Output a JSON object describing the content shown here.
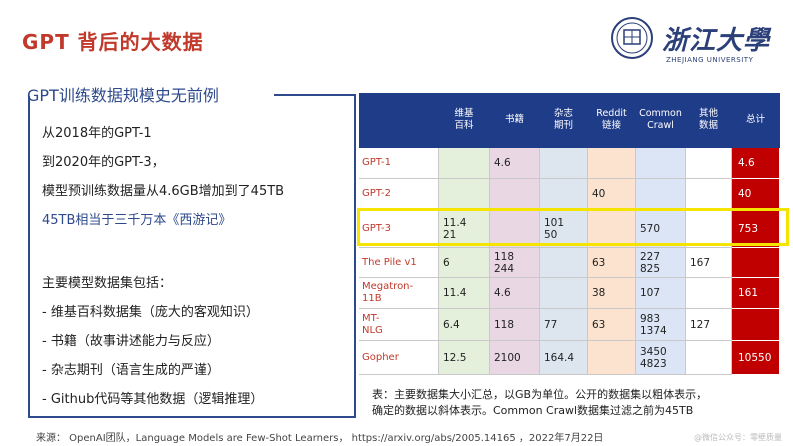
{
  "slide": {
    "title": "GPT 背后的大数据"
  },
  "logo": {
    "chinese": "浙江大學",
    "english": "ZHEJIANG UNIVERSITY"
  },
  "left": {
    "subtitle": "GPT训练数据规模史无前例",
    "lines": [
      "从2018年的GPT-1",
      "到2020年的GPT-3，",
      "模型预训练数据量从4.6GB增加到了45TB",
      "45TB相当于三千万本《西游记》",
      "",
      "主要模型数据集包括：",
      "-  维基百科数据集（庞大的客观知识）",
      "-  书籍（故事讲述能力与反应）",
      "-  杂志期刊（语言生成的严谨）",
      "-  Github代码等其他数据（逻辑推理）"
    ]
  },
  "table": {
    "headers": [
      "",
      "维基\n百科",
      "书籍",
      "杂志\n期刊",
      "Reddit\n链接",
      "Common\nCrawl",
      "其他\n数据",
      "总计"
    ],
    "rows": [
      {
        "name": "GPT-1",
        "cells": [
          "",
          "4.6",
          "",
          "",
          "",
          "",
          "4.6"
        ]
      },
      {
        "name": "GPT-2",
        "cells": [
          "",
          "",
          "",
          "40",
          "",
          "",
          "40"
        ]
      },
      {
        "name": "GPT-3",
        "cells": [
          "11.4\n21",
          "",
          "101\n50",
          "",
          "570",
          "",
          "753"
        ]
      },
      {
        "name": "The Pile v1",
        "cells": [
          "6",
          "118\n244",
          "",
          "63",
          "227\n825",
          "167",
          ""
        ]
      },
      {
        "name": "Megatron-\n11B",
        "cells": [
          "11.4",
          "4.6",
          "",
          "38",
          "107",
          "",
          "161"
        ]
      },
      {
        "name": "MT-\nNLG",
        "cells": [
          "6.4",
          "118",
          "77",
          "63",
          "983\n1374",
          "127",
          ""
        ]
      },
      {
        "name": "Gopher",
        "cells": [
          "12.5",
          "2100",
          "164.4",
          "",
          "3450\n4823",
          "",
          "10550"
        ]
      }
    ],
    "column_colors": [
      "#e4f0dc",
      "#ead7e4",
      "#dde6ef",
      "#fbe3cf",
      "#dbe5f6",
      "#ffffff",
      "#c00000"
    ],
    "name_color": "#c0392b",
    "header_color": "#1f3c88"
  },
  "caption": {
    "line1": "表：主要数据集大小汇总，以GB为单位。公开的数据集以粗体表示，",
    "line2": "确定的数据以斜体表示。Common Crawl数据集过滤之前为45TB"
  },
  "source": "来源：  OpenAI团队，Language Models are Few-Shot Learners，  https://arxiv.org/abs/2005.14165 ，2022年7月22日",
  "watermark": "@微信公众号：零壁质量"
}
